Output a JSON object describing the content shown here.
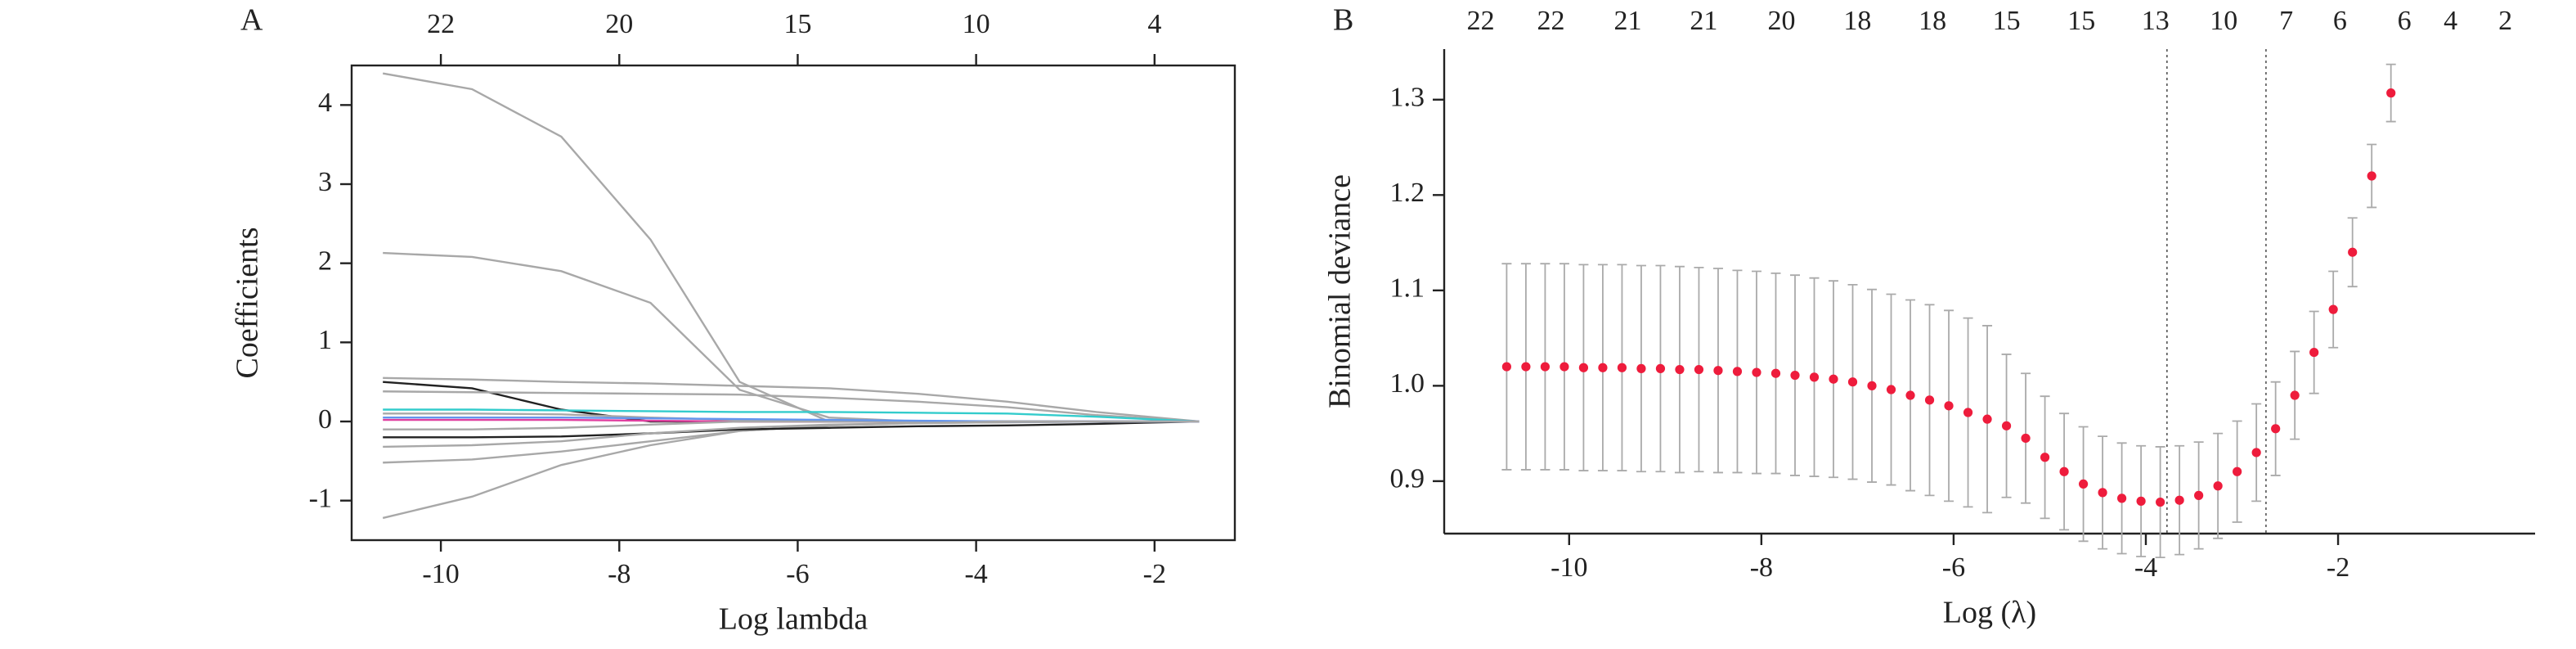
{
  "chart_data": [
    {
      "type": "line",
      "panel": "A",
      "xlabel": "Log lambda",
      "ylabel": "Coefficients",
      "xlim": [
        -11.0,
        -1.1
      ],
      "ylim": [
        -1.5,
        4.5
      ],
      "xticks": [
        -10,
        -8,
        -6,
        -4,
        -2
      ],
      "yticks": [
        -1,
        0,
        1,
        2,
        3,
        4
      ],
      "top_ticks": [
        {
          "value": -10,
          "label": "22"
        },
        {
          "value": -8,
          "label": "20"
        },
        {
          "value": -6,
          "label": "15"
        },
        {
          "value": -4,
          "label": "10"
        },
        {
          "value": -2,
          "label": "4"
        }
      ],
      "box": true,
      "x": [
        -10.65,
        -9.65,
        -8.65,
        -7.65,
        -6.65,
        -5.65,
        -4.65,
        -3.65,
        -2.65,
        -1.5
      ],
      "series": [
        {
          "color": "#a8a8a8",
          "values": [
            4.4,
            4.2,
            3.6,
            2.3,
            0.5,
            0,
            0,
            0,
            0,
            0
          ]
        },
        {
          "color": "#a8a8a8",
          "values": [
            2.13,
            2.08,
            1.9,
            1.5,
            0.4,
            0.05,
            0,
            0,
            0,
            0
          ]
        },
        {
          "color": "#a8a8a8",
          "values": [
            0.55,
            0.53,
            0.5,
            0.48,
            0.45,
            0.42,
            0.35,
            0.25,
            0.12,
            0
          ]
        },
        {
          "color": "#222222",
          "values": [
            0.5,
            0.42,
            0.15,
            0,
            0,
            0,
            0,
            0,
            0,
            0
          ]
        },
        {
          "color": "#a8a8a8",
          "values": [
            0.38,
            0.37,
            0.36,
            0.35,
            0.34,
            0.3,
            0.25,
            0.18,
            0.08,
            0
          ]
        },
        {
          "color": "#a8a8a8",
          "values": [
            -0.52,
            -0.48,
            -0.38,
            -0.25,
            -0.12,
            -0.05,
            -0.02,
            -0.01,
            0,
            0
          ]
        },
        {
          "color": "#a8a8a8",
          "values": [
            -1.22,
            -0.95,
            -0.55,
            -0.3,
            -0.12,
            -0.05,
            -0.02,
            -0.01,
            0,
            0
          ]
        },
        {
          "color": "#33cccc",
          "values": [
            0.15,
            0.15,
            0.14,
            0.13,
            0.12,
            0.12,
            0.11,
            0.1,
            0.06,
            0
          ]
        },
        {
          "color": "#222222",
          "values": [
            -0.2,
            -0.2,
            -0.19,
            -0.15,
            -0.1,
            -0.08,
            -0.06,
            -0.05,
            -0.03,
            0
          ]
        },
        {
          "color": "#e040a0",
          "values": [
            0.02,
            0.02,
            0.02,
            0.01,
            0,
            0,
            0,
            0,
            0,
            0
          ]
        },
        {
          "color": "#a8a8a8",
          "values": [
            0.1,
            0.1,
            0.09,
            0.05,
            0.02,
            0,
            0,
            0,
            0,
            0
          ]
        },
        {
          "color": "#a8a8a8",
          "values": [
            -0.1,
            -0.1,
            -0.08,
            -0.04,
            0,
            0,
            0,
            0,
            0,
            0
          ]
        },
        {
          "color": "#6495ed",
          "values": [
            0.05,
            0.05,
            0.05,
            0.04,
            0.03,
            0.02,
            0.01,
            0,
            0,
            0
          ]
        },
        {
          "color": "#a8a8a8",
          "values": [
            -0.32,
            -0.3,
            -0.25,
            -0.15,
            -0.08,
            -0.04,
            -0.02,
            0,
            0,
            0
          ]
        }
      ]
    },
    {
      "type": "scatter",
      "panel": "B",
      "xlabel": "Log (λ)",
      "ylabel": "Binomial deviance",
      "xlim": [
        -11.3,
        0.05
      ],
      "ylim": [
        0.845,
        1.353
      ],
      "xticks": [
        -10,
        -8,
        -6,
        -4,
        -2
      ],
      "yticks": [
        0.9,
        {
          "value": 1,
          "label": "1.0"
        },
        1.1,
        1.2,
        1.3
      ],
      "top_ticks": [
        {
          "value": -10.92,
          "label": "22"
        },
        {
          "value": -10.19,
          "label": "22"
        },
        {
          "value": -9.39,
          "label": "21"
        },
        {
          "value": -8.6,
          "label": "21"
        },
        {
          "value": -7.79,
          "label": "20"
        },
        {
          "value": -7.0,
          "label": "18"
        },
        {
          "value": -6.22,
          "label": "18"
        },
        {
          "value": -5.45,
          "label": "15"
        },
        {
          "value": -4.67,
          "label": "15"
        },
        {
          "value": -3.9,
          "label": "13"
        },
        {
          "value": -3.19,
          "label": "10"
        },
        {
          "value": -2.54,
          "label": "7"
        },
        {
          "value": -1.98,
          "label": "6"
        },
        {
          "value": -1.31,
          "label": "6"
        },
        {
          "value": -0.83,
          "label": "4"
        },
        {
          "value": -0.26,
          "label": "2"
        }
      ],
      "box": false,
      "color": "#ee1c3c",
      "error_color": "#aaaaaa",
      "vlines": [
        -3.78,
        -2.75
      ],
      "x": [
        -10.65,
        -10.45,
        -10.25,
        -10.05,
        -9.85,
        -9.65,
        -9.45,
        -9.25,
        -9.05,
        -8.85,
        -8.65,
        -8.45,
        -8.25,
        -8.05,
        -7.85,
        -7.65,
        -7.45,
        -7.25,
        -7.05,
        -6.85,
        -6.65,
        -6.45,
        -6.25,
        -6.05,
        -5.85,
        -5.65,
        -5.45,
        -5.25,
        -5.05,
        -4.85,
        -4.65,
        -4.45,
        -4.25,
        -4.05,
        -3.85,
        -3.65,
        -3.45,
        -3.25,
        -3.05,
        -2.85,
        -2.65,
        -2.45,
        -2.25,
        -2.05,
        -1.85,
        -1.65,
        -1.45
      ],
      "values": [
        1.02,
        1.02,
        1.02,
        1.02,
        1.019,
        1.019,
        1.019,
        1.018,
        1.018,
        1.017,
        1.017,
        1.016,
        1.015,
        1.014,
        1.013,
        1.011,
        1.009,
        1.007,
        1.004,
        1.0,
        0.996,
        0.99,
        0.985,
        0.979,
        0.972,
        0.965,
        0.958,
        0.945,
        0.925,
        0.91,
        0.897,
        0.888,
        0.882,
        0.879,
        0.878,
        0.88,
        0.885,
        0.895,
        0.91,
        0.93,
        0.955,
        0.99,
        1.035,
        1.08,
        1.14,
        1.22,
        1.307
      ],
      "errors": [
        0.108,
        0.108,
        0.108,
        0.108,
        0.108,
        0.108,
        0.108,
        0.108,
        0.108,
        0.108,
        0.107,
        0.107,
        0.106,
        0.106,
        0.105,
        0.105,
        0.104,
        0.103,
        0.102,
        0.101,
        0.1,
        0.1,
        0.1,
        0.1,
        0.099,
        0.098,
        0.075,
        0.068,
        0.064,
        0.061,
        0.06,
        0.059,
        0.058,
        0.058,
        0.058,
        0.057,
        0.056,
        0.055,
        0.053,
        0.051,
        0.049,
        0.046,
        0.043,
        0.04,
        0.036,
        0.033,
        0.03
      ]
    }
  ]
}
